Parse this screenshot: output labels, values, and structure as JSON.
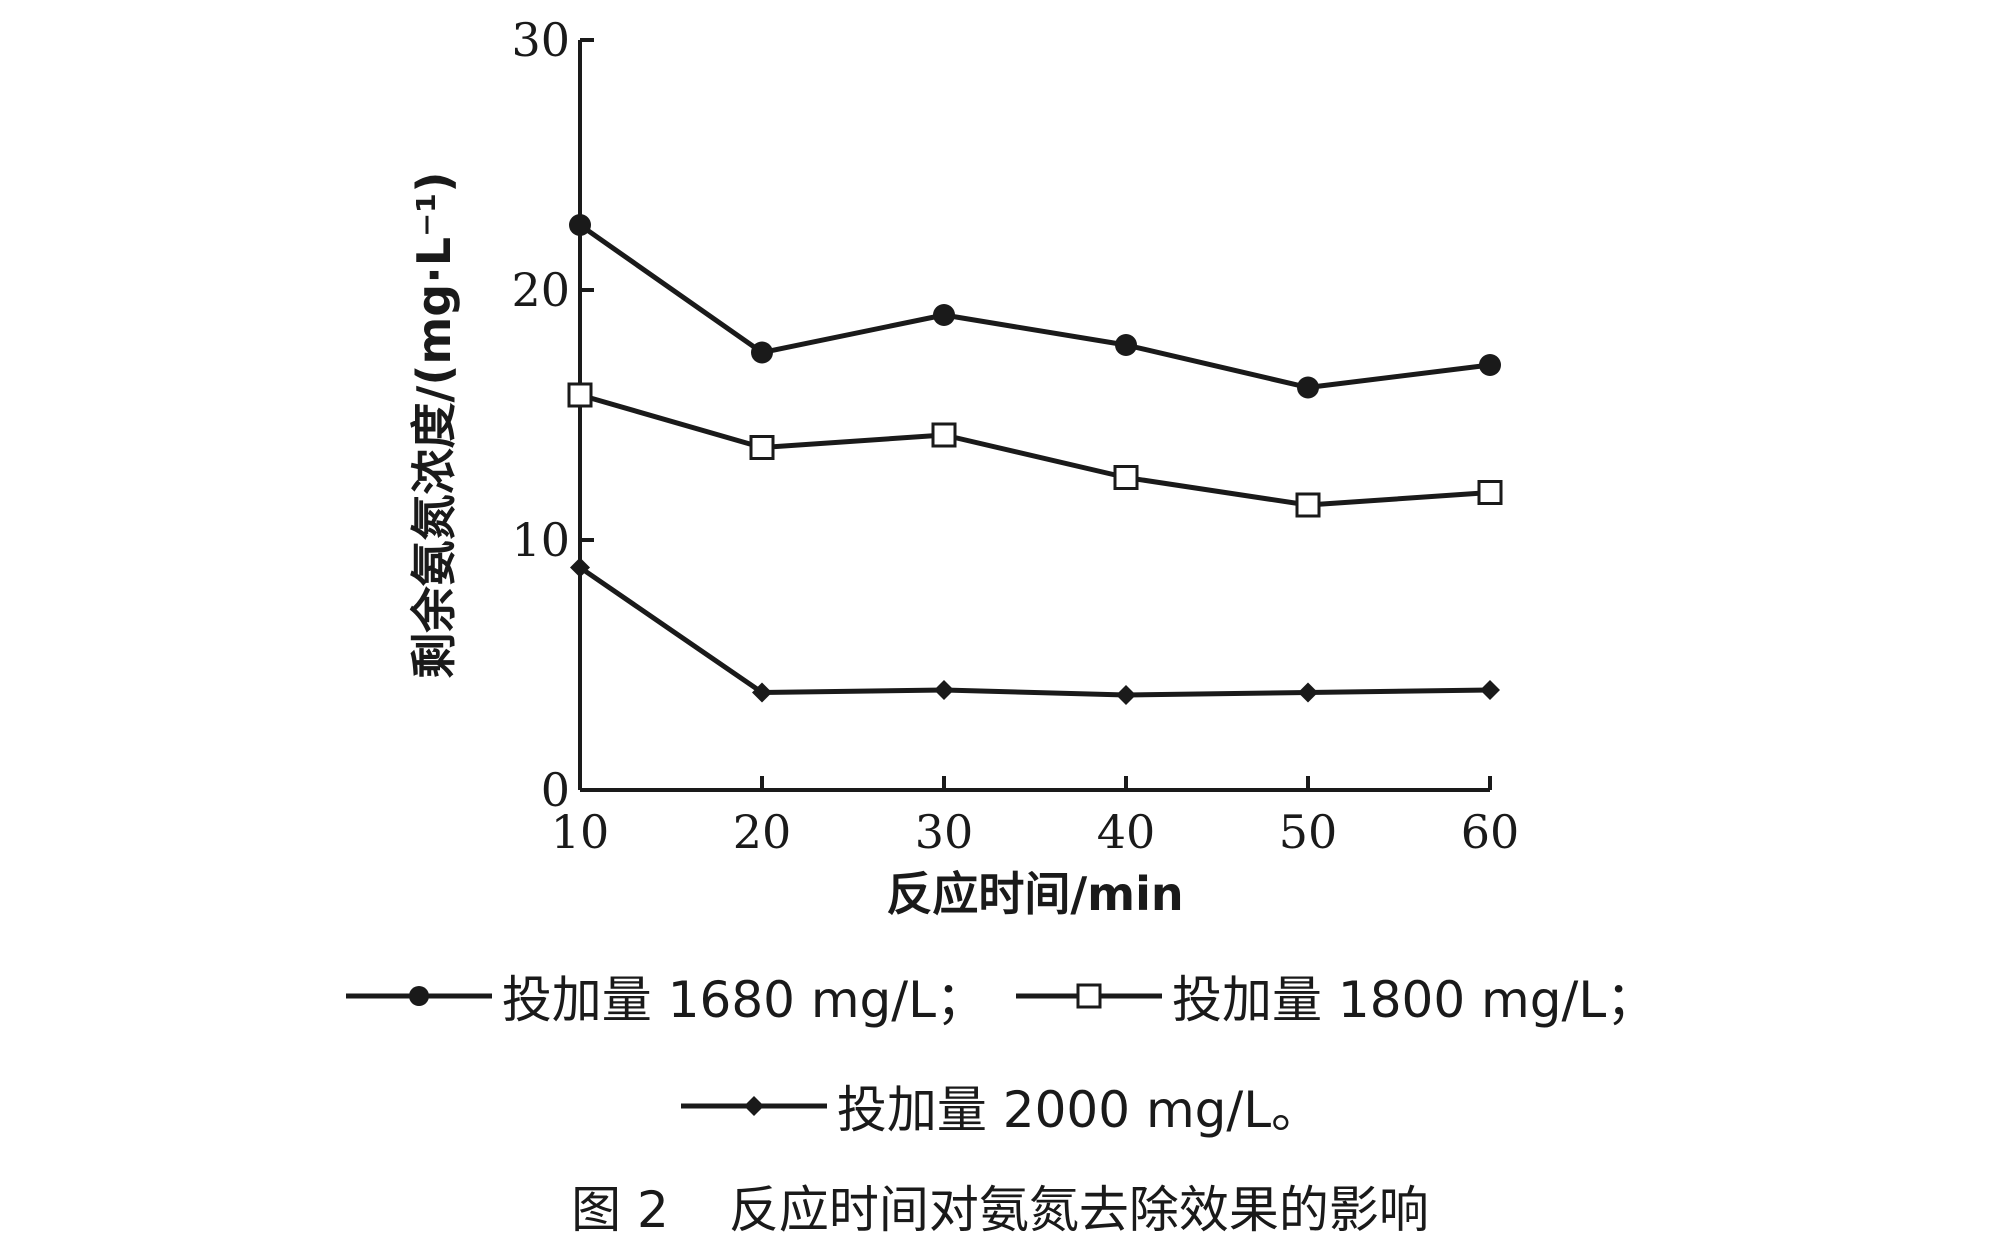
{
  "chart_data": {
    "type": "line",
    "xlabel": "反应时间/min",
    "ylabel": "剩余氨氮浓度/(mg·L⁻¹)",
    "x": [
      10,
      20,
      30,
      40,
      50,
      60
    ],
    "xlim": [
      10,
      60
    ],
    "ylim": [
      0,
      30
    ],
    "xticks": [
      "10",
      "20",
      "30",
      "40",
      "50",
      "60"
    ],
    "yticks": [
      "0",
      "10",
      "20",
      "30"
    ],
    "grid": false,
    "legend_position": "bottom",
    "series": [
      {
        "name": "投加量 1680 mg/L；",
        "marker": "filled-circle",
        "values": [
          22.6,
          17.5,
          19.0,
          17.8,
          16.1,
          17.0
        ]
      },
      {
        "name": "投加量 1800 mg/L；",
        "marker": "open-square",
        "values": [
          15.8,
          13.7,
          14.2,
          12.5,
          11.4,
          11.9
        ]
      },
      {
        "name": "投加量 2000 mg/L。",
        "marker": "filled-diamond",
        "values": [
          8.9,
          3.9,
          4.0,
          3.8,
          3.9,
          4.0
        ]
      }
    ]
  },
  "caption": {
    "number": "图 2",
    "text": "反应时间对氨氮去除效果的影响"
  }
}
